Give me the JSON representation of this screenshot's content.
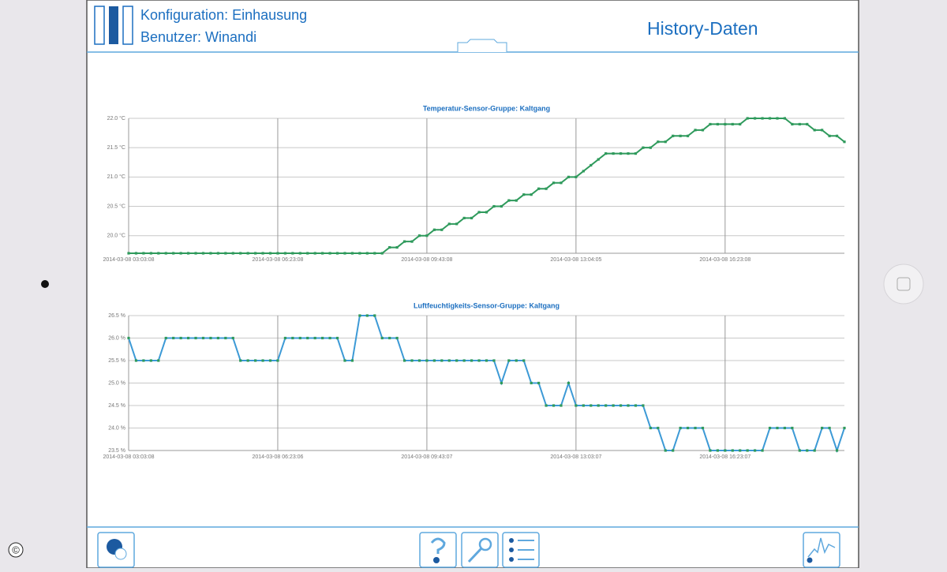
{
  "header": {
    "config": "Konfiguration: Einhausung",
    "user": "Benutzer: Winandi",
    "title": "History-Daten"
  },
  "watermark": "©",
  "chart_data": [
    {
      "type": "line",
      "title": "Temperatur-Sensor-Gruppe: Kaltgang",
      "grid": true,
      "categories": [
        "2014-03-08 03:03:08",
        null,
        null,
        null,
        null,
        null,
        null,
        null,
        null,
        null,
        null,
        null,
        null,
        null,
        null,
        null,
        null,
        null,
        null,
        null,
        "2014-03-08 06:23:08",
        null,
        null,
        null,
        null,
        null,
        null,
        null,
        null,
        null,
        null,
        null,
        null,
        null,
        null,
        null,
        null,
        null,
        null,
        null,
        "2014-03-08 09:43:08",
        null,
        null,
        null,
        null,
        null,
        null,
        null,
        null,
        null,
        null,
        null,
        null,
        null,
        null,
        null,
        null,
        null,
        null,
        null,
        "2014-03-08 13:04:05",
        null,
        null,
        null,
        null,
        null,
        null,
        null,
        null,
        null,
        null,
        null,
        null,
        null,
        null,
        null,
        null,
        null,
        null,
        null,
        "2014-03-08 16:23:08",
        null,
        null,
        null,
        null,
        null,
        null,
        null,
        null,
        null,
        null,
        null,
        null,
        null,
        null,
        null,
        null
      ],
      "ylim": [
        19.7,
        22.0
      ],
      "yticks": [
        {
          "value": 22.0,
          "label": "22.0 °C"
        },
        {
          "value": 21.5,
          "label": "21.5 °C"
        },
        {
          "value": 21.0,
          "label": "21.0 °C"
        },
        {
          "value": 20.5,
          "label": "20.5 °C"
        },
        {
          "value": 20.0,
          "label": "20.0 °C"
        }
      ],
      "series": [
        {
          "color": "#2f9a5c",
          "marker_color": "#2f9a5c",
          "values": [
            19.7,
            19.7,
            19.7,
            19.7,
            19.7,
            19.7,
            19.7,
            19.7,
            19.7,
            19.7,
            19.7,
            19.7,
            19.7,
            19.7,
            19.7,
            19.7,
            19.7,
            19.7,
            19.7,
            19.7,
            19.7,
            19.7,
            19.7,
            19.7,
            19.7,
            19.7,
            19.7,
            19.7,
            19.7,
            19.7,
            19.7,
            19.7,
            19.7,
            19.7,
            19.7,
            19.8,
            19.8,
            19.9,
            19.9,
            20.0,
            20.0,
            20.1,
            20.1,
            20.2,
            20.2,
            20.3,
            20.3,
            20.4,
            20.4,
            20.5,
            20.5,
            20.6,
            20.6,
            20.7,
            20.7,
            20.8,
            20.8,
            20.9,
            20.9,
            21.0,
            21.0,
            21.1,
            21.2,
            21.3,
            21.4,
            21.4,
            21.4,
            21.4,
            21.4,
            21.5,
            21.5,
            21.6,
            21.6,
            21.7,
            21.7,
            21.7,
            21.8,
            21.8,
            21.9,
            21.9,
            21.9,
            21.9,
            21.9,
            22.0,
            22.0,
            22.0,
            22.0,
            22.0,
            22.0,
            21.9,
            21.9,
            21.9,
            21.8,
            21.8,
            21.7,
            21.7,
            21.6
          ]
        }
      ]
    },
    {
      "type": "line",
      "title": "Luftfeuchtigkeits-Sensor-Gruppe: Kaltgang",
      "grid": true,
      "categories": [
        "2014-03-08 03:03:08",
        null,
        null,
        null,
        null,
        null,
        null,
        null,
        null,
        null,
        null,
        null,
        null,
        null,
        null,
        null,
        null,
        null,
        null,
        null,
        "2014-03-08 06:23:06",
        null,
        null,
        null,
        null,
        null,
        null,
        null,
        null,
        null,
        null,
        null,
        null,
        null,
        null,
        null,
        null,
        null,
        null,
        null,
        "2014-03-08 09:43:07",
        null,
        null,
        null,
        null,
        null,
        null,
        null,
        null,
        null,
        null,
        null,
        null,
        null,
        null,
        null,
        null,
        null,
        null,
        null,
        "2014-03-08 13:03:07",
        null,
        null,
        null,
        null,
        null,
        null,
        null,
        null,
        null,
        null,
        null,
        null,
        null,
        null,
        null,
        null,
        null,
        null,
        null,
        "2014-03-08 16:23:07",
        null,
        null,
        null,
        null,
        null,
        null,
        null,
        null,
        null,
        null,
        null,
        null,
        null,
        null,
        null,
        null
      ],
      "ylim": [
        23.5,
        26.5
      ],
      "yticks": [
        {
          "value": 26.5,
          "label": "26.5 %"
        },
        {
          "value": 26.0,
          "label": "26.0 %"
        },
        {
          "value": 25.5,
          "label": "25.5 %"
        },
        {
          "value": 25.0,
          "label": "25.0 %"
        },
        {
          "value": 24.5,
          "label": "24.5 %"
        },
        {
          "value": 24.0,
          "label": "24.0 %"
        },
        {
          "value": 23.5,
          "label": "23.5 %"
        }
      ],
      "series": [
        {
          "color": "#3d9ad6",
          "marker_color": "#2f9a5c",
          "values": [
            26.0,
            25.5,
            25.5,
            25.5,
            25.5,
            26.0,
            26.0,
            26.0,
            26.0,
            26.0,
            26.0,
            26.0,
            26.0,
            26.0,
            26.0,
            25.5,
            25.5,
            25.5,
            25.5,
            25.5,
            25.5,
            26.0,
            26.0,
            26.0,
            26.0,
            26.0,
            26.0,
            26.0,
            26.0,
            25.5,
            25.5,
            26.5,
            26.5,
            26.5,
            26.0,
            26.0,
            26.0,
            25.5,
            25.5,
            25.5,
            25.5,
            25.5,
            25.5,
            25.5,
            25.5,
            25.5,
            25.5,
            25.5,
            25.5,
            25.5,
            25.0,
            25.5,
            25.5,
            25.5,
            25.0,
            25.0,
            24.5,
            24.5,
            24.5,
            25.0,
            24.5,
            24.5,
            24.5,
            24.5,
            24.5,
            24.5,
            24.5,
            24.5,
            24.5,
            24.5,
            24.0,
            24.0,
            23.5,
            23.5,
            24.0,
            24.0,
            24.0,
            24.0,
            23.5,
            23.5,
            23.5,
            23.5,
            23.5,
            23.5,
            23.5,
            23.5,
            24.0,
            24.0,
            24.0,
            24.0,
            23.5,
            23.5,
            23.5,
            24.0,
            24.0,
            23.5,
            24.0
          ]
        }
      ]
    }
  ]
}
